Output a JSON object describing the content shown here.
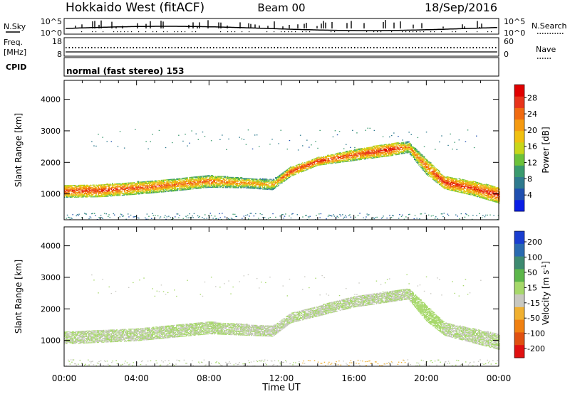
{
  "header": {
    "radar": "Hokkaido West (fitACF)",
    "beam": "Beam 00",
    "date": "18/Sep/2016"
  },
  "noise_panel": {
    "left_label": "N.Sky",
    "right_label": "N.Search",
    "left_ticks": [
      "10^5",
      "10^0"
    ],
    "right_ticks": [
      "10^5",
      "10^0"
    ]
  },
  "freq_panel": {
    "left_label_1": "Freq.",
    "left_label_2": "[MHz]",
    "right_label": "Nave",
    "left_ticks": [
      "18",
      "8"
    ],
    "right_ticks": [
      "60",
      "0"
    ]
  },
  "cpid_panel": {
    "label": "CPID",
    "text": "normal (fast stereo) 153"
  },
  "x_axis": {
    "label": "Time UT",
    "ticks": [
      "00:00",
      "04:00",
      "08:00",
      "12:00",
      "16:00",
      "20:00",
      "00:00"
    ]
  },
  "chart_data": [
    {
      "type": "heatmap",
      "title": "",
      "xlabel": "",
      "ylabel": "Slant Range [km]",
      "yticks": [
        "1000",
        "2000",
        "3000",
        "4000"
      ],
      "ylim": [
        180,
        4600
      ],
      "xlim_hours": [
        0,
        24
      ],
      "colorbar": {
        "label": "Power [dB]",
        "ticks": [
          "4",
          "8",
          "12",
          "16",
          "20",
          "24",
          "28"
        ],
        "range": [
          0,
          30
        ],
        "colors": [
          "#0a1ee6",
          "#1f4fb0",
          "#2e7a8e",
          "#3a9a6e",
          "#6cc23a",
          "#c8d61a",
          "#f0c010",
          "#f59a10",
          "#f06a10",
          "#e8331a",
          "#e00000"
        ]
      },
      "bands": [
        {
          "t": 0.0,
          "lo": 880,
          "hi": 1280,
          "v": 18
        },
        {
          "t": 2.0,
          "lo": 900,
          "hi": 1300,
          "v": 19
        },
        {
          "t": 4.0,
          "lo": 980,
          "hi": 1380,
          "v": 17
        },
        {
          "t": 6.0,
          "lo": 1080,
          "hi": 1480,
          "v": 16
        },
        {
          "t": 8.0,
          "lo": 1200,
          "hi": 1580,
          "v": 16
        },
        {
          "t": 10.0,
          "lo": 1180,
          "hi": 1500,
          "v": 14
        },
        {
          "t": 11.5,
          "lo": 1120,
          "hi": 1450,
          "v": 13
        },
        {
          "t": 12.5,
          "lo": 1550,
          "hi": 1850,
          "v": 18
        },
        {
          "t": 14.0,
          "lo": 1900,
          "hi": 2150,
          "v": 20
        },
        {
          "t": 16.0,
          "lo": 2050,
          "hi": 2400,
          "v": 17
        },
        {
          "t": 18.0,
          "lo": 2200,
          "hi": 2600,
          "v": 20
        },
        {
          "t": 19.0,
          "lo": 2300,
          "hi": 2650,
          "v": 14
        },
        {
          "t": 20.0,
          "lo": 1600,
          "hi": 2100,
          "v": 16
        },
        {
          "t": 21.0,
          "lo": 1150,
          "hi": 1550,
          "v": 20
        },
        {
          "t": 22.5,
          "lo": 950,
          "hi": 1400,
          "v": 18
        },
        {
          "t": 24.0,
          "lo": 700,
          "hi": 1200,
          "v": 20
        }
      ]
    },
    {
      "type": "heatmap",
      "title": "",
      "xlabel": "Time UT",
      "ylabel": "Slant Range [km]",
      "yticks": [
        "1000",
        "2000",
        "3000",
        "4000"
      ],
      "ylim": [
        180,
        4600
      ],
      "xlim_hours": [
        0,
        24
      ],
      "colorbar": {
        "label": "Velocity [m s^-1]",
        "ticks": [
          "200",
          "100",
          "50",
          "15",
          "-15",
          "-50",
          "-100",
          "-200"
        ],
        "range": [
          -250,
          250
        ],
        "colors": [
          "#1a3ed0",
          "#2a6ab0",
          "#3d8a70",
          "#5cb64a",
          "#a6d86a",
          "#c8c8c0",
          "#f0b030",
          "#f08010",
          "#e05010",
          "#e01010"
        ]
      },
      "bands": [
        {
          "t": 0.0,
          "lo": 880,
          "hi": 1280,
          "v": 0
        },
        {
          "t": 4.0,
          "lo": 980,
          "hi": 1380,
          "v": 0
        },
        {
          "t": 8.0,
          "lo": 1200,
          "hi": 1580,
          "v": 5
        },
        {
          "t": 11.5,
          "lo": 1120,
          "hi": 1450,
          "v": -5
        },
        {
          "t": 12.5,
          "lo": 1550,
          "hi": 1850,
          "v": 0
        },
        {
          "t": 16.0,
          "lo": 2050,
          "hi": 2400,
          "v": 0
        },
        {
          "t": 19.0,
          "lo": 2300,
          "hi": 2650,
          "v": 0
        },
        {
          "t": 20.0,
          "lo": 1600,
          "hi": 2100,
          "v": 30
        },
        {
          "t": 21.0,
          "lo": 1150,
          "hi": 1550,
          "v": 0
        },
        {
          "t": 24.0,
          "lo": 700,
          "hi": 1200,
          "v": 0
        }
      ]
    }
  ]
}
